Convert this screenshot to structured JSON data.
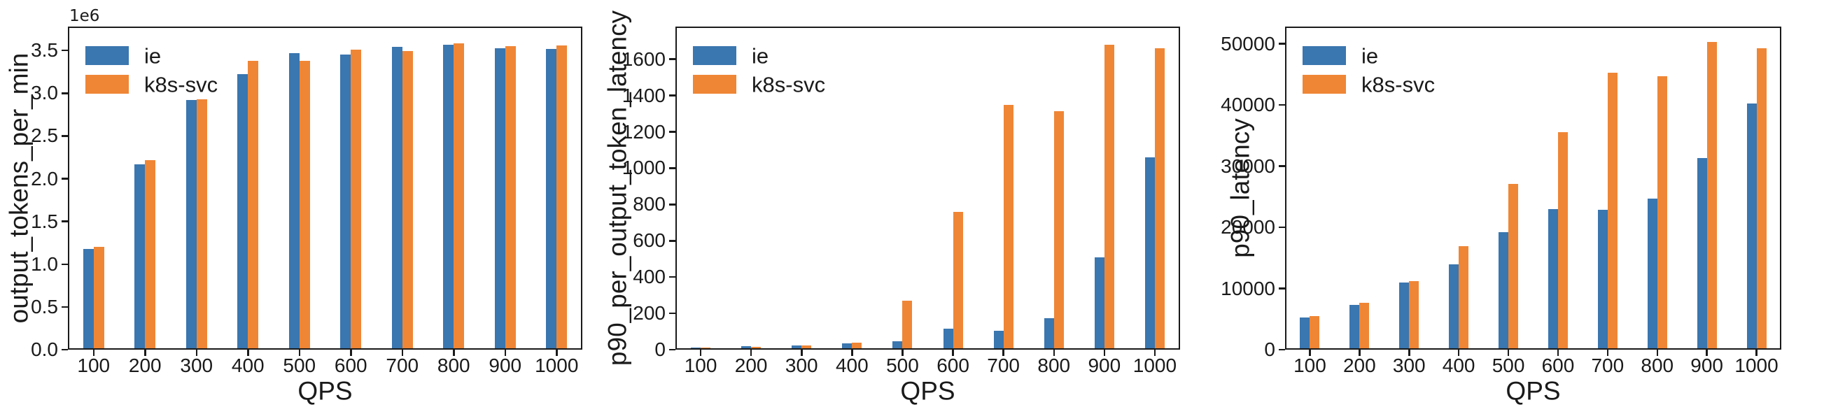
{
  "figure": {
    "background": "#ffffff",
    "axis_color": "#1a1a1a"
  },
  "chart_data": [
    {
      "type": "bar",
      "title": "",
      "ylabel": "output_tokens_per_min",
      "xlabel": "QPS",
      "offset_text": "1e6",
      "grid": false,
      "legend_position": "upper left",
      "categories": [
        "100",
        "200",
        "300",
        "400",
        "500",
        "600",
        "700",
        "800",
        "900",
        "1000"
      ],
      "series": [
        {
          "name": "ie",
          "color": "#3A76AF",
          "values": [
            1180000,
            2170000,
            2920000,
            3220000,
            3470000,
            3450000,
            3540000,
            3570000,
            3530000,
            3520000
          ]
        },
        {
          "name": "k8s-svc",
          "color": "#EF8636",
          "values": [
            1200000,
            2220000,
            2930000,
            3380000,
            3380000,
            3510000,
            3490000,
            3580000,
            3550000,
            3560000
          ]
        }
      ],
      "ytick_values": [
        0,
        500000,
        1000000,
        1500000,
        2000000,
        2500000,
        3000000,
        3500000
      ],
      "ytick_labels": [
        "0.0",
        "0.5",
        "1.0",
        "1.5",
        "2.0",
        "2.5",
        "3.0",
        "3.5"
      ],
      "ylim": [
        0,
        3780000
      ]
    },
    {
      "type": "bar",
      "title": "",
      "ylabel": "p90_per_output_token_latency",
      "xlabel": "QPS",
      "grid": false,
      "legend_position": "upper left",
      "categories": [
        "100",
        "200",
        "300",
        "400",
        "500",
        "600",
        "700",
        "800",
        "900",
        "1000"
      ],
      "series": [
        {
          "name": "ie",
          "color": "#3A76AF",
          "values": [
            11,
            18,
            25,
            34,
            47,
            115,
            105,
            175,
            510,
            1060
          ]
        },
        {
          "name": "k8s-svc",
          "color": "#EF8636",
          "values": [
            10,
            17,
            23,
            38,
            270,
            760,
            1350,
            1315,
            1680,
            1660
          ]
        }
      ],
      "ytick_values": [
        0,
        200,
        400,
        600,
        800,
        1000,
        1200,
        1400,
        1600
      ],
      "ytick_labels": [
        "0",
        "200",
        "400",
        "600",
        "800",
        "1000",
        "1200",
        "1400",
        "1600"
      ],
      "ylim": [
        0,
        1780
      ]
    },
    {
      "type": "bar",
      "title": "",
      "ylabel": "p90_latency",
      "xlabel": "QPS",
      "grid": false,
      "legend_position": "upper left",
      "categories": [
        "100",
        "200",
        "300",
        "400",
        "500",
        "600",
        "700",
        "800",
        "900",
        "1000"
      ],
      "series": [
        {
          "name": "ie",
          "color": "#3A76AF",
          "values": [
            5300,
            7350,
            11000,
            13900,
            19200,
            23000,
            22800,
            24700,
            31300,
            40200
          ]
        },
        {
          "name": "k8s-svc",
          "color": "#EF8636",
          "values": [
            5450,
            7650,
            11200,
            16900,
            27100,
            35500,
            45300,
            44700,
            50300,
            49300
          ]
        }
      ],
      "ytick_values": [
        0,
        10000,
        20000,
        30000,
        40000,
        50000
      ],
      "ytick_labels": [
        "0",
        "10000",
        "20000",
        "30000",
        "40000",
        "50000"
      ],
      "ylim": [
        0,
        52800
      ]
    }
  ]
}
